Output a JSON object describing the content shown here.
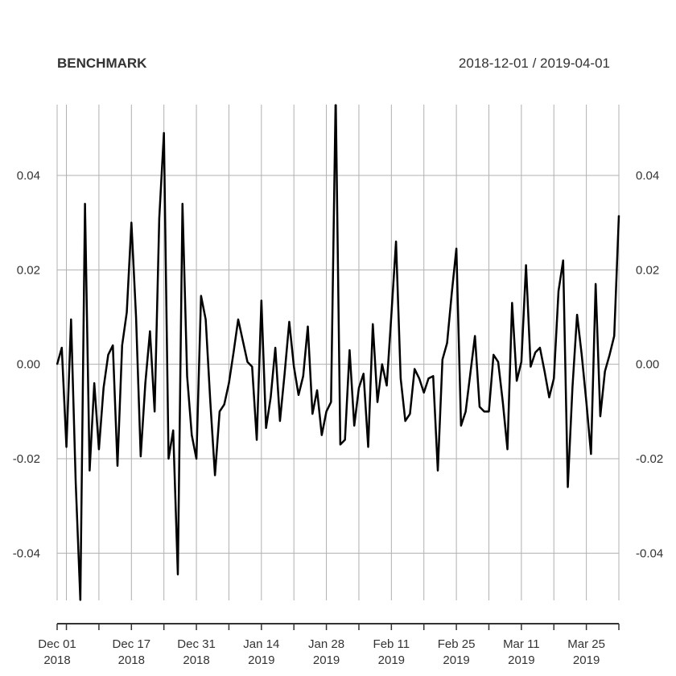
{
  "chart_data": {
    "type": "line",
    "title": "BENCHMARK",
    "date_range": "2018-12-01 / 2019-04-01",
    "ylim": [
      -0.05,
      0.055
    ],
    "y_ticks": [
      "-0.04",
      "-0.02",
      "0.00",
      "0.02",
      "0.04"
    ],
    "y_tick_values": [
      -0.04,
      -0.02,
      0.0,
      0.02,
      0.04
    ],
    "x_ticks": [
      {
        "day": "Dec 01",
        "year": "2018"
      },
      {
        "day": "Dec 17",
        "year": "2018"
      },
      {
        "day": "Dec 31",
        "year": "2018"
      },
      {
        "day": "Jan 14",
        "year": "2019"
      },
      {
        "day": "Jan 28",
        "year": "2019"
      },
      {
        "day": "Feb 11",
        "year": "2019"
      },
      {
        "day": "Feb 25",
        "year": "2019"
      },
      {
        "day": "Mar 11",
        "year": "2019"
      },
      {
        "day": "Mar 25",
        "year": "2019"
      }
    ],
    "x_tick_dates": [
      "2018-12-01",
      "2018-12-17",
      "2018-12-31",
      "2019-01-14",
      "2019-01-28",
      "2019-02-11",
      "2019-02-25",
      "2019-03-11",
      "2019-03-25"
    ],
    "grid_dates": [
      "2018-12-01",
      "2018-12-03",
      "2018-12-10",
      "2018-12-17",
      "2018-12-24",
      "2018-12-31",
      "2019-01-07",
      "2019-01-14",
      "2019-01-21",
      "2019-01-28",
      "2019-02-04",
      "2019-02-11",
      "2019-02-18",
      "2019-02-25",
      "2019-03-04",
      "2019-03-11",
      "2019-03-18",
      "2019-03-25",
      "2019-04-01"
    ],
    "grid": true,
    "series": [
      {
        "color": "#000000",
        "x": [
          "2018-12-01",
          "2018-12-02",
          "2018-12-03",
          "2018-12-04",
          "2018-12-05",
          "2018-12-06",
          "2018-12-07",
          "2018-12-08",
          "2018-12-09",
          "2018-12-10",
          "2018-12-11",
          "2018-12-12",
          "2018-12-13",
          "2018-12-14",
          "2018-12-15",
          "2018-12-16",
          "2018-12-17",
          "2018-12-18",
          "2018-12-19",
          "2018-12-20",
          "2018-12-21",
          "2018-12-22",
          "2018-12-23",
          "2018-12-24",
          "2018-12-25",
          "2018-12-26",
          "2018-12-27",
          "2018-12-28",
          "2018-12-29",
          "2018-12-30",
          "2018-12-31",
          "2019-01-01",
          "2019-01-02",
          "2019-01-03",
          "2019-01-04",
          "2019-01-05",
          "2019-01-06",
          "2019-01-07",
          "2019-01-08",
          "2019-01-09",
          "2019-01-10",
          "2019-01-11",
          "2019-01-12",
          "2019-01-13",
          "2019-01-14",
          "2019-01-15",
          "2019-01-16",
          "2019-01-17",
          "2019-01-18",
          "2019-01-19",
          "2019-01-20",
          "2019-01-21",
          "2019-01-22",
          "2019-01-23",
          "2019-01-24",
          "2019-01-25",
          "2019-01-26",
          "2019-01-27",
          "2019-01-28",
          "2019-01-29",
          "2019-01-30",
          "2019-01-31",
          "2019-02-01",
          "2019-02-02",
          "2019-02-03",
          "2019-02-04",
          "2019-02-05",
          "2019-02-06",
          "2019-02-07",
          "2019-02-08",
          "2019-02-09",
          "2019-02-10",
          "2019-02-11",
          "2019-02-12",
          "2019-02-13",
          "2019-02-14",
          "2019-02-15",
          "2019-02-16",
          "2019-02-17",
          "2019-02-18",
          "2019-02-19",
          "2019-02-20",
          "2019-02-21",
          "2019-02-22",
          "2019-02-23",
          "2019-02-24",
          "2019-02-25",
          "2019-02-26",
          "2019-02-27",
          "2019-02-28",
          "2019-03-01",
          "2019-03-02",
          "2019-03-03",
          "2019-03-04",
          "2019-03-05",
          "2019-03-06",
          "2019-03-07",
          "2019-03-08",
          "2019-03-09",
          "2019-03-10",
          "2019-03-11",
          "2019-03-12",
          "2019-03-13",
          "2019-03-14",
          "2019-03-15",
          "2019-03-16",
          "2019-03-17",
          "2019-03-18",
          "2019-03-19",
          "2019-03-20",
          "2019-03-21",
          "2019-03-22",
          "2019-03-23",
          "2019-03-24",
          "2019-03-25",
          "2019-03-26",
          "2019-03-27",
          "2019-03-28",
          "2019-03-29",
          "2019-03-30",
          "2019-03-31",
          "2019-04-01"
        ],
        "y": [
          0.0,
          0.0035,
          -0.0175,
          0.0095,
          -0.025,
          -0.05,
          0.034,
          -0.0225,
          -0.004,
          -0.018,
          -0.005,
          0.002,
          0.004,
          -0.0215,
          0.004,
          0.011,
          0.03,
          0.01,
          -0.0195,
          -0.004,
          0.007,
          -0.01,
          0.031,
          0.049,
          -0.02,
          -0.014,
          -0.0445,
          0.034,
          -0.0025,
          -0.015,
          -0.02,
          0.0145,
          0.0095,
          -0.008,
          -0.0235,
          -0.01,
          -0.0085,
          -0.004,
          0.0025,
          0.0095,
          0.005,
          0.0005,
          -0.0005,
          -0.016,
          0.0135,
          -0.0135,
          -0.007,
          0.0035,
          -0.012,
          -0.002,
          0.009,
          -0.0005,
          -0.0065,
          -0.0025,
          0.008,
          -0.0105,
          -0.0055,
          -0.015,
          -0.01,
          -0.008,
          0.057,
          -0.017,
          -0.016,
          0.003,
          -0.013,
          -0.005,
          -0.002,
          -0.0175,
          0.0085,
          -0.008,
          0.0,
          -0.0045,
          0.0105,
          0.026,
          -0.003,
          -0.012,
          -0.0105,
          -0.001,
          -0.003,
          -0.006,
          -0.003,
          -0.0025,
          -0.0225,
          0.001,
          0.0045,
          0.015,
          0.0245,
          -0.013,
          -0.01,
          -0.002,
          0.006,
          -0.009,
          -0.01,
          -0.01,
          0.002,
          0.0005,
          -0.008,
          -0.018,
          0.013,
          -0.0035,
          0.0005,
          0.021,
          -0.0005,
          0.0025,
          0.0035,
          -0.0015,
          -0.007,
          -0.003,
          0.0155,
          0.022,
          -0.026,
          -0.005,
          0.0105,
          0.002,
          -0.008,
          -0.019,
          0.017,
          -0.011,
          -0.0015,
          0.002,
          0.006,
          0.0315
        ]
      }
    ]
  }
}
